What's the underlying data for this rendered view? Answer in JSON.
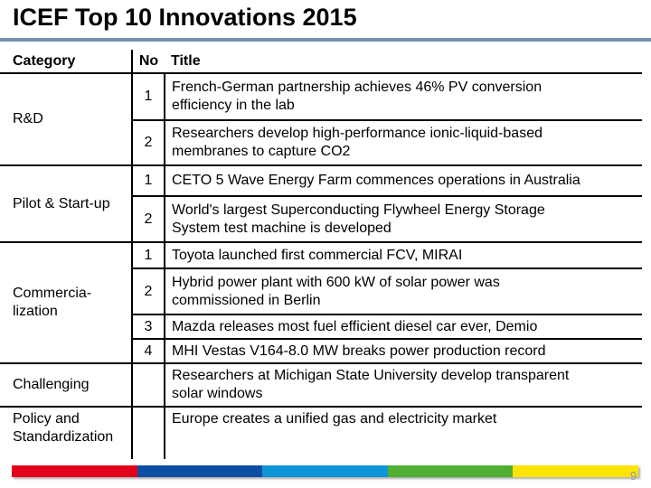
{
  "slide": {
    "title": "ICEF Top 10 Innovations 2015",
    "page_number": "9",
    "accent_line_color": "#7693B2",
    "footer_bar_colors": [
      "#E2001A",
      "#0B4EA2",
      "#0D95D8",
      "#4FAE33",
      "#FBE500"
    ]
  },
  "table": {
    "headers": {
      "category": "Category",
      "no": "No",
      "title": "Title"
    },
    "sections": [
      {
        "category": "R&D",
        "rows": [
          {
            "no": "1",
            "title": "French-German partnership achieves 46% PV conversion\nefficiency in the lab"
          },
          {
            "no": "2",
            "title": "Researchers develop high-performance ionic-liquid-based\nmembranes to capture CO2"
          }
        ]
      },
      {
        "category": "Pilot & Start-up",
        "rows": [
          {
            "no": "1",
            "title": "CETO 5 Wave Energy Farm commences operations in Australia"
          },
          {
            "no": "2",
            "title": "World's largest Superconducting Flywheel Energy Storage\nSystem test machine is developed"
          }
        ]
      },
      {
        "category": "Commercia-\nlization",
        "rows": [
          {
            "no": "1",
            "title": "Toyota launched first commercial FCV, MIRAI"
          },
          {
            "no": "2",
            "title": "Hybrid power plant with 600 kW of solar power was\ncommissioned in Berlin"
          },
          {
            "no": "3",
            "title": "Mazda releases most fuel efficient diesel car ever, Demio"
          },
          {
            "no": "4",
            "title": "MHI Vestas V164-8.0 MW breaks power production record"
          }
        ]
      },
      {
        "category": "Challenging",
        "rows": [
          {
            "no": "",
            "title": "Researchers at Michigan State University develop transparent\nsolar windows"
          }
        ]
      },
      {
        "category": "Policy and\nStandardization",
        "rows": [
          {
            "no": "",
            "title": "Europe creates a unified gas and electricity market"
          }
        ]
      }
    ]
  }
}
